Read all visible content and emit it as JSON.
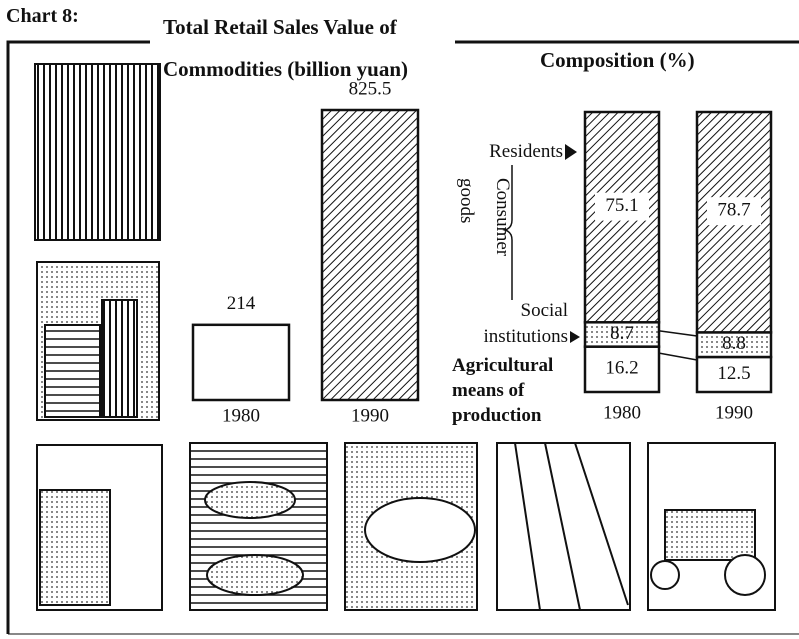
{
  "label": "Chart 8:",
  "chart_data": [
    {
      "type": "bar",
      "title": "Total Retail Sales Value of Commodities (billion yuan)",
      "categories": [
        "1980",
        "1990"
      ],
      "values": [
        214,
        825.5
      ]
    },
    {
      "type": "stacked_bar",
      "title": "Composition (%)",
      "group_label": "Consumer goods",
      "categories": [
        "1980",
        "1990"
      ],
      "series": [
        {
          "name": "Agricultural means of production",
          "values": [
            16.2,
            12.5
          ]
        },
        {
          "name": "Social institutions",
          "values": [
            8.7,
            8.8
          ]
        },
        {
          "name": "Residents",
          "values": [
            75.1,
            78.7
          ]
        }
      ]
    }
  ]
}
